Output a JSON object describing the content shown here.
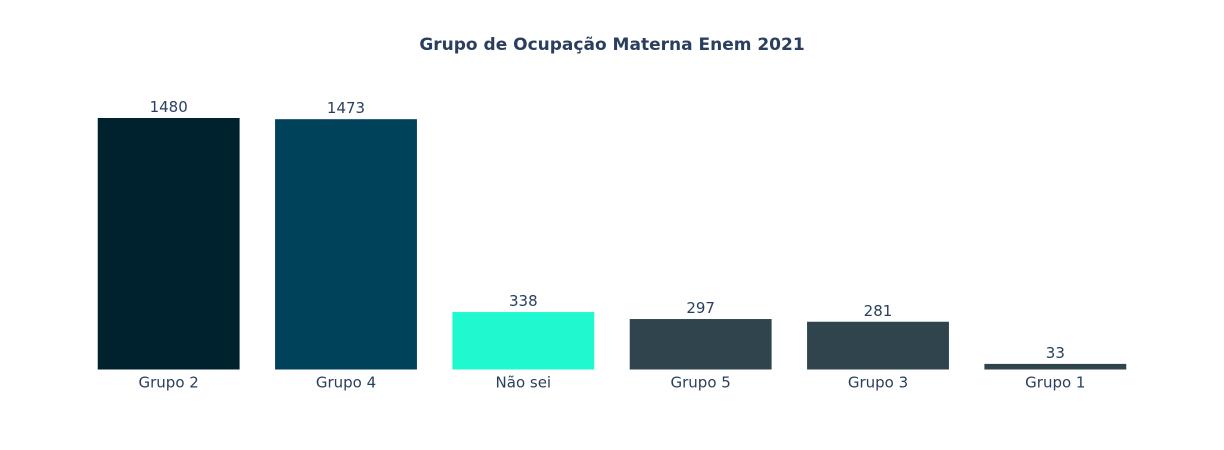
{
  "chart_data": {
    "type": "bar",
    "title": "Grupo de Ocupação Materna Enem 2021",
    "xlabel": "",
    "ylabel": "",
    "categories": [
      "Grupo 2",
      "Grupo 4",
      "Não sei",
      "Grupo 5",
      "Grupo 3",
      "Grupo 1"
    ],
    "values": [
      1480,
      1473,
      338,
      297,
      281,
      33
    ],
    "data_labels": [
      "1480",
      "1473",
      "338",
      "297",
      "281",
      "33"
    ],
    "colors": [
      "#00222f",
      "#00425a",
      "#20f8d0",
      "#2f444c",
      "#2f444c",
      "#2f444c"
    ],
    "ylim": [
      0,
      1480
    ],
    "grid": false,
    "legend": "none",
    "yaxis_visible": false
  }
}
